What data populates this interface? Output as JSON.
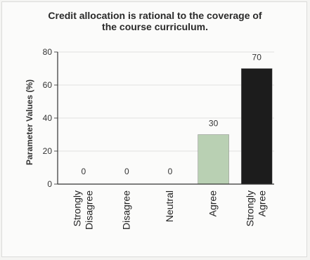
{
  "chart_data": {
    "type": "bar",
    "title": "Credit allocation is rational to the coverage of the course curriculum.",
    "title_lines": [
      "Credit allocation is rational to the coverage of",
      "the course curriculum."
    ],
    "ylabel": "Parameter Values (%)",
    "xlabel": "",
    "ylim": [
      0,
      80
    ],
    "yticks": [
      0,
      20,
      40,
      60,
      80
    ],
    "categories": [
      "Strongly Disagree",
      "Disagree",
      "Neutral",
      "Agree",
      "Strongly Agree"
    ],
    "category_lines": [
      [
        "Strongly",
        "Disagree"
      ],
      [
        "Disagree"
      ],
      [
        "Neutral"
      ],
      [
        "Agree"
      ],
      [
        "Strongly",
        "Agree"
      ]
    ],
    "values": [
      0,
      0,
      0,
      30,
      70
    ],
    "data_labels": [
      "0",
      "0",
      "0",
      "30",
      "70"
    ],
    "bar_colors": [
      "#b9d0b3",
      "#b9d0b3",
      "#b9d0b3",
      "#b9d0b3",
      "#1c1c1c"
    ],
    "grid": true,
    "legend": "none"
  }
}
